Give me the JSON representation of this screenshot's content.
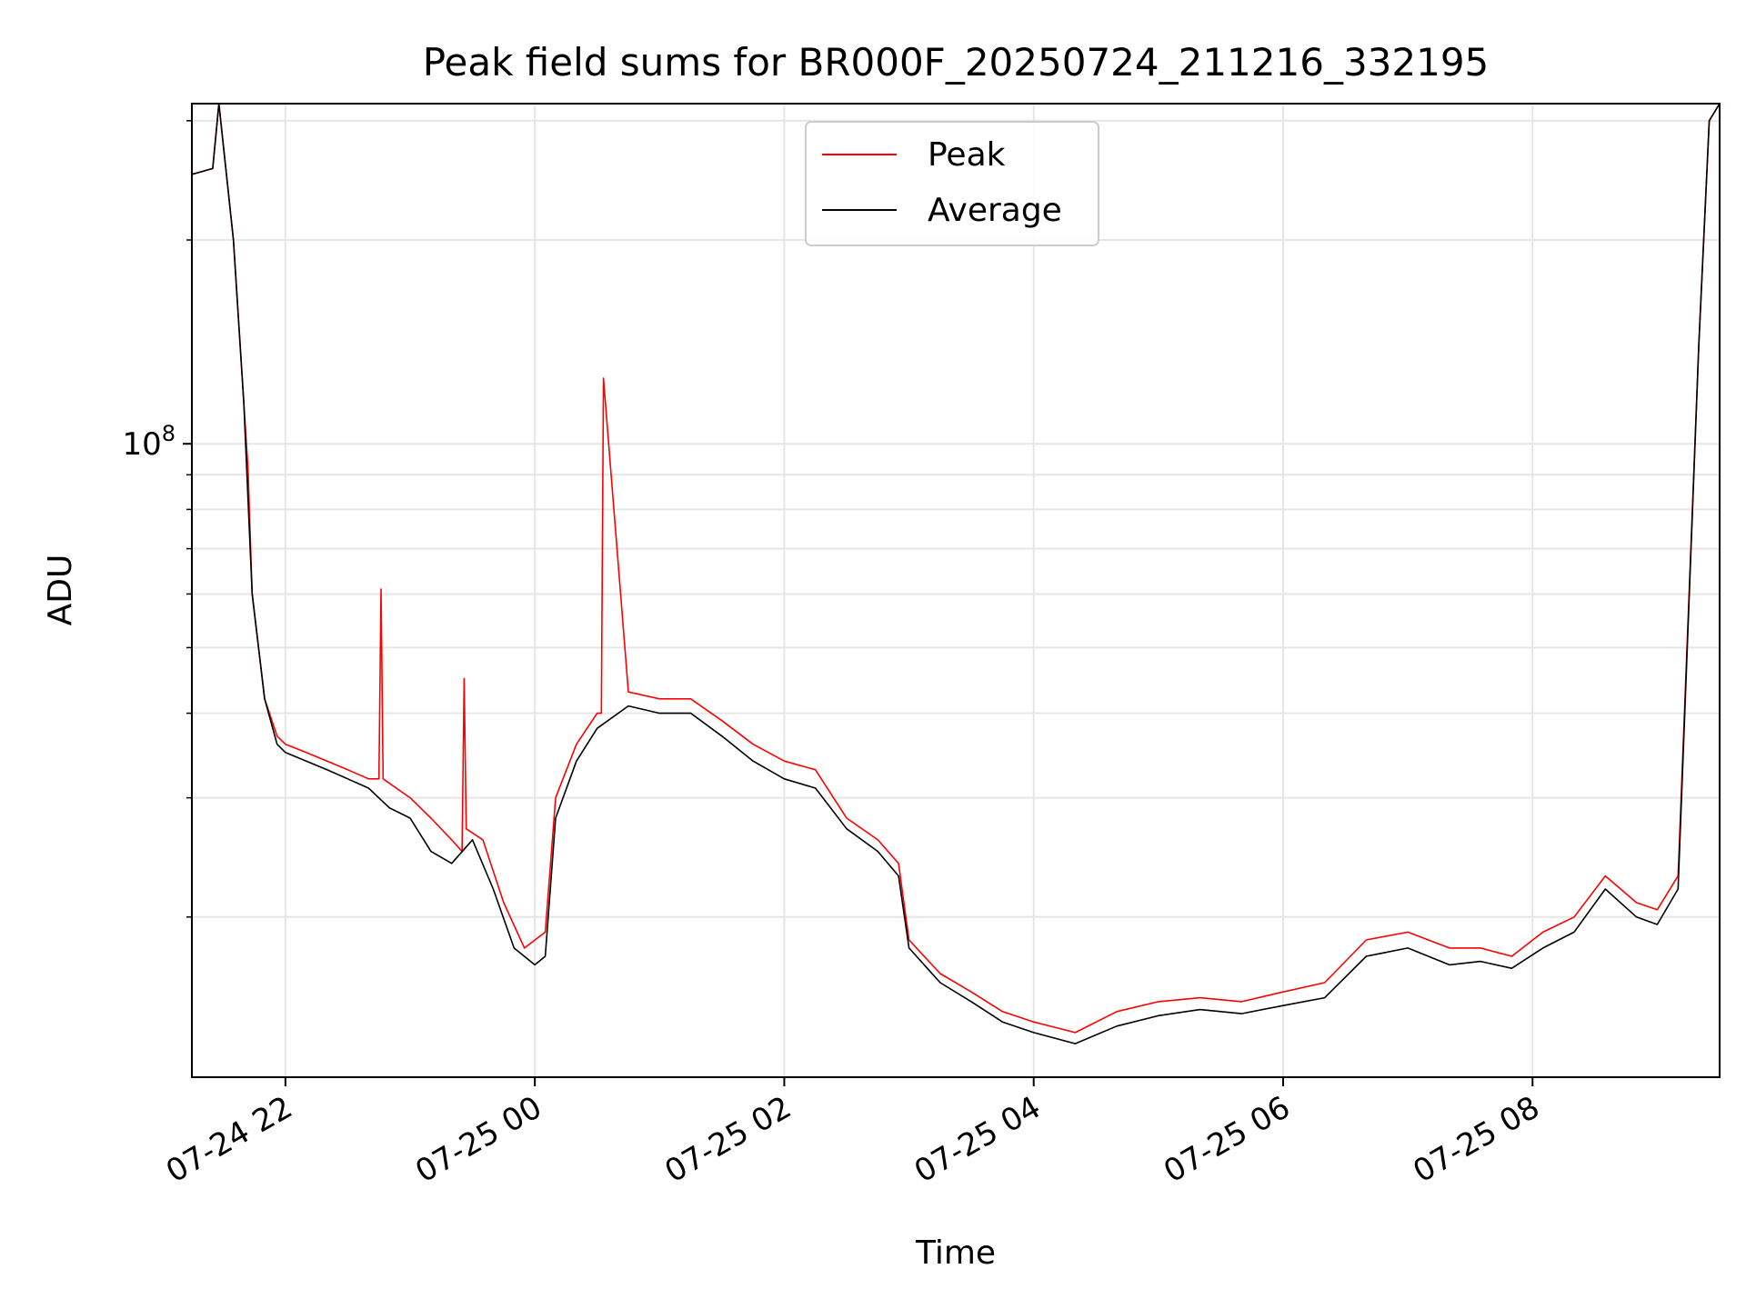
{
  "chart_data": {
    "type": "line",
    "title": "Peak field sums for BR000F_20250724_211216_332195",
    "xlabel": "Time",
    "ylabel": "ADU",
    "yscale": "log",
    "xlim": [
      "2025-07-24 21:15",
      "2025-07-25 09:30"
    ],
    "ylim": [
      11600000,
      318000000
    ],
    "x_ticks": [
      {
        "at": "2025-07-24 22:00",
        "label": "07-24 22"
      },
      {
        "at": "2025-07-25 00:00",
        "label": "07-25 00"
      },
      {
        "at": "2025-07-25 02:00",
        "label": "07-25 02"
      },
      {
        "at": "2025-07-25 04:00",
        "label": "07-25 04"
      },
      {
        "at": "2025-07-25 06:00",
        "label": "07-25 06"
      },
      {
        "at": "2025-07-25 08:00",
        "label": "07-25 08"
      }
    ],
    "y_major_ticks": [
      {
        "value": 100000000,
        "base": "10",
        "exponent": "8"
      }
    ],
    "y_minor_ticks": [
      20000000,
      30000000,
      40000000,
      50000000,
      60000000,
      70000000,
      80000000,
      90000000,
      200000000,
      300000000
    ],
    "grid": true,
    "legend": {
      "position": "top-center"
    },
    "series": [
      {
        "name": "Peak",
        "color": "#ff0000",
        "x": [
          "2025-07-24 21:15",
          "2025-07-24 21:25",
          "2025-07-24 21:28",
          "2025-07-24 21:35",
          "2025-07-24 21:40",
          "2025-07-24 21:42",
          "2025-07-24 21:44",
          "2025-07-24 21:50",
          "2025-07-24 21:56",
          "2025-07-24 22:00",
          "2025-07-24 22:10",
          "2025-07-24 22:20",
          "2025-07-24 22:30",
          "2025-07-24 22:40",
          "2025-07-24 22:45",
          "2025-07-24 22:46",
          "2025-07-24 22:47",
          "2025-07-24 23:00",
          "2025-07-24 23:10",
          "2025-07-24 23:20",
          "2025-07-24 23:25",
          "2025-07-24 23:26",
          "2025-07-24 23:27",
          "2025-07-24 23:35",
          "2025-07-24 23:45",
          "2025-07-24 23:55",
          "2025-07-25 00:05",
          "2025-07-25 00:10",
          "2025-07-25 00:20",
          "2025-07-25 00:30",
          "2025-07-25 00:32",
          "2025-07-25 00:33",
          "2025-07-25 00:45",
          "2025-07-25 01:00",
          "2025-07-25 01:15",
          "2025-07-25 01:30",
          "2025-07-25 01:45",
          "2025-07-25 02:00",
          "2025-07-25 02:15",
          "2025-07-25 02:30",
          "2025-07-25 02:45",
          "2025-07-25 02:55",
          "2025-07-25 03:00",
          "2025-07-25 03:15",
          "2025-07-25 03:30",
          "2025-07-25 03:45",
          "2025-07-25 04:00",
          "2025-07-25 04:20",
          "2025-07-25 04:40",
          "2025-07-25 05:00",
          "2025-07-25 05:20",
          "2025-07-25 05:40",
          "2025-07-25 06:00",
          "2025-07-25 06:20",
          "2025-07-25 06:40",
          "2025-07-25 07:00",
          "2025-07-25 07:20",
          "2025-07-25 07:35",
          "2025-07-25 07:50",
          "2025-07-25 08:05",
          "2025-07-25 08:20",
          "2025-07-25 08:35",
          "2025-07-25 08:50",
          "2025-07-25 09:00",
          "2025-07-25 09:10",
          "2025-07-25 09:20",
          "2025-07-25 09:25",
          "2025-07-25 09:30"
        ],
        "values": [
          250000000,
          255000000,
          318000000,
          200000000,
          115000000,
          92000000,
          60000000,
          42000000,
          37000000,
          36000000,
          35000000,
          34000000,
          33000000,
          32000000,
          32000000,
          61000000,
          32000000,
          30000000,
          28000000,
          26000000,
          25000000,
          45000000,
          27000000,
          26000000,
          21000000,
          18000000,
          19000000,
          30000000,
          36000000,
          40000000,
          40000000,
          125000000,
          43000000,
          42000000,
          42000000,
          39000000,
          36000000,
          34000000,
          33000000,
          28000000,
          26000000,
          24000000,
          18500000,
          16500000,
          15500000,
          14500000,
          14000000,
          13500000,
          14500000,
          15000000,
          15200000,
          15000000,
          15500000,
          16000000,
          18500000,
          19000000,
          18000000,
          18000000,
          17500000,
          19000000,
          20000000,
          23000000,
          21000000,
          20500000,
          23000000,
          140000000,
          300000000,
          318000000
        ]
      },
      {
        "name": "Average",
        "color": "#000000",
        "x": [
          "2025-07-24 21:15",
          "2025-07-24 21:25",
          "2025-07-24 21:28",
          "2025-07-24 21:35",
          "2025-07-24 21:40",
          "2025-07-24 21:44",
          "2025-07-24 21:50",
          "2025-07-24 21:56",
          "2025-07-24 22:00",
          "2025-07-24 22:10",
          "2025-07-24 22:20",
          "2025-07-24 22:30",
          "2025-07-24 22:40",
          "2025-07-24 22:50",
          "2025-07-24 23:00",
          "2025-07-24 23:10",
          "2025-07-24 23:20",
          "2025-07-24 23:30",
          "2025-07-24 23:40",
          "2025-07-24 23:50",
          "2025-07-25 00:00",
          "2025-07-25 00:05",
          "2025-07-25 00:10",
          "2025-07-25 00:20",
          "2025-07-25 00:30",
          "2025-07-25 00:45",
          "2025-07-25 01:00",
          "2025-07-25 01:15",
          "2025-07-25 01:30",
          "2025-07-25 01:45",
          "2025-07-25 02:00",
          "2025-07-25 02:15",
          "2025-07-25 02:30",
          "2025-07-25 02:45",
          "2025-07-25 02:55",
          "2025-07-25 03:00",
          "2025-07-25 03:15",
          "2025-07-25 03:30",
          "2025-07-25 03:45",
          "2025-07-25 04:00",
          "2025-07-25 04:20",
          "2025-07-25 04:40",
          "2025-07-25 05:00",
          "2025-07-25 05:20",
          "2025-07-25 05:40",
          "2025-07-25 06:00",
          "2025-07-25 06:20",
          "2025-07-25 06:40",
          "2025-07-25 07:00",
          "2025-07-25 07:20",
          "2025-07-25 07:35",
          "2025-07-25 07:50",
          "2025-07-25 08:05",
          "2025-07-25 08:20",
          "2025-07-25 08:35",
          "2025-07-25 08:50",
          "2025-07-25 09:00",
          "2025-07-25 09:10",
          "2025-07-25 09:20",
          "2025-07-25 09:25",
          "2025-07-25 09:30"
        ],
        "values": [
          250000000,
          255000000,
          318000000,
          200000000,
          115000000,
          60000000,
          42000000,
          36000000,
          35000000,
          34000000,
          33000000,
          32000000,
          31000000,
          29000000,
          28000000,
          25000000,
          24000000,
          26000000,
          22000000,
          18000000,
          17000000,
          17500000,
          28000000,
          34000000,
          38000000,
          41000000,
          40000000,
          40000000,
          37000000,
          34000000,
          32000000,
          31000000,
          27000000,
          25000000,
          23000000,
          18000000,
          16000000,
          15000000,
          14000000,
          13500000,
          13000000,
          13800000,
          14300000,
          14600000,
          14400000,
          14800000,
          15200000,
          17500000,
          18000000,
          17000000,
          17200000,
          16800000,
          18000000,
          19000000,
          22000000,
          20000000,
          19500000,
          22000000,
          140000000,
          300000000,
          318000000
        ]
      }
    ]
  }
}
